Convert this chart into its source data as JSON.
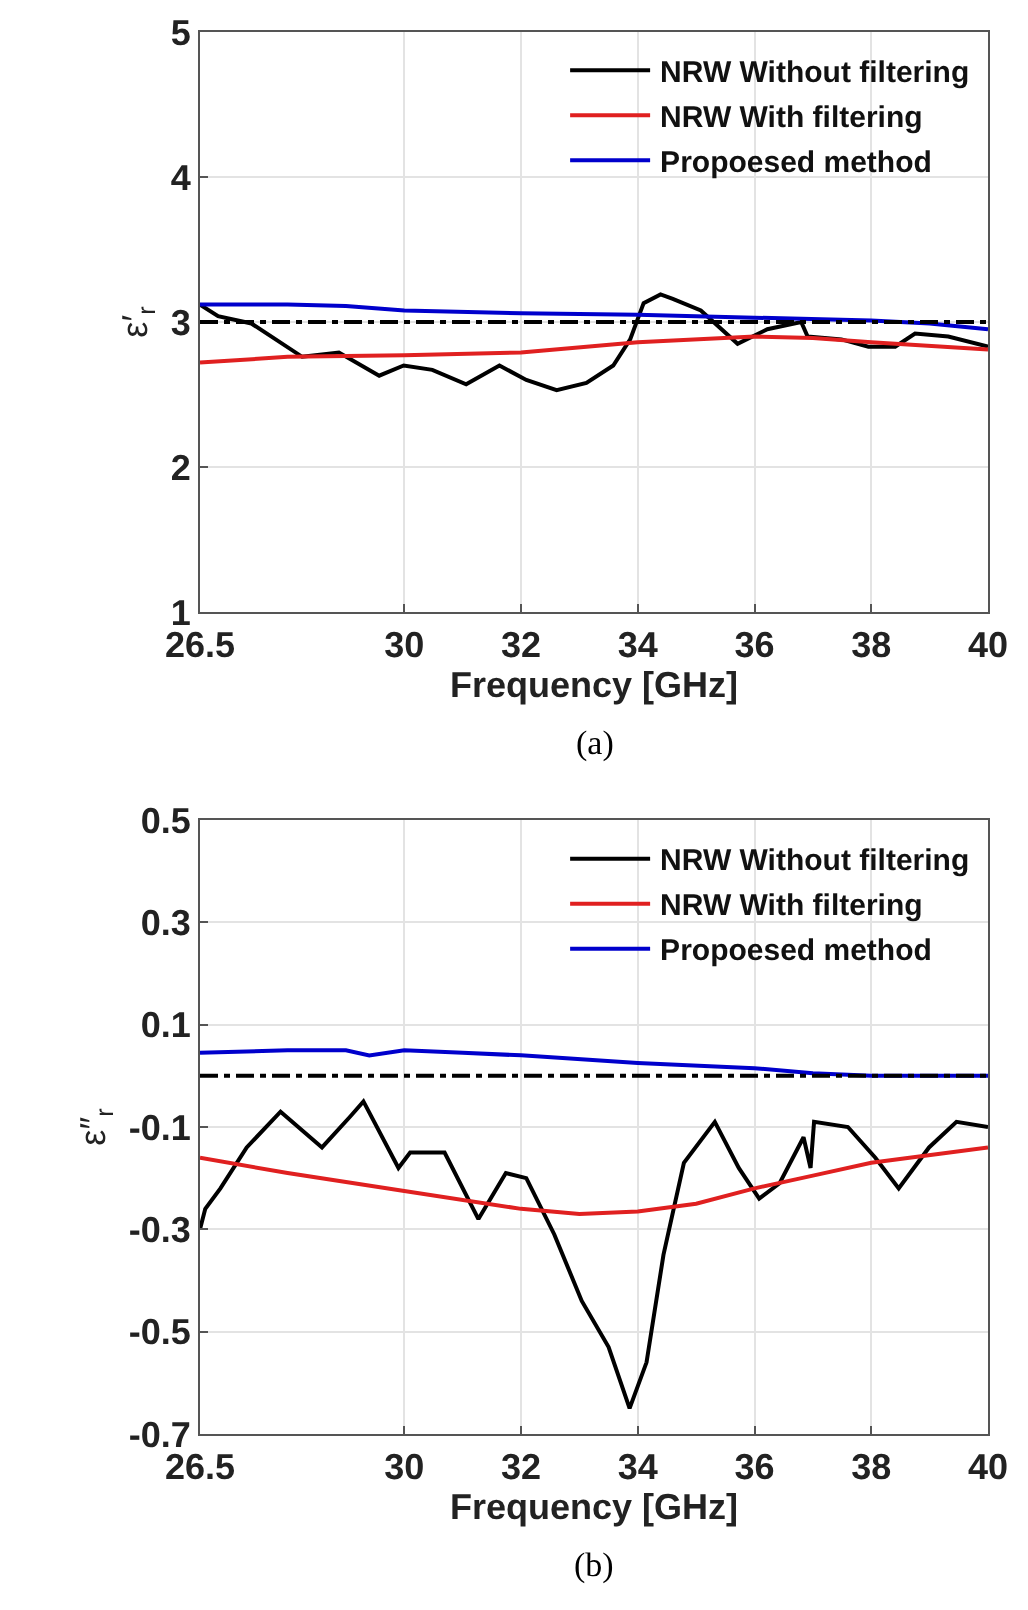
{
  "chart_data": [
    {
      "type": "line",
      "xlabel": "Frequency [GHz]",
      "ylabel": "ε′$_{r}$",
      "annotations": [
        "(a)"
      ],
      "xlim": [
        26.5,
        40
      ],
      "xticks": [
        26.5,
        30,
        32,
        34,
        36,
        38,
        40
      ],
      "ylim": [
        1,
        5
      ],
      "yticks": [
        1,
        2,
        3,
        4,
        5
      ],
      "grid": true,
      "legend": "top right",
      "line_style": "solid",
      "ref_lines": [
        {
          "axis": "y",
          "value": 3,
          "color": "#000000",
          "line_style": "dashed"
        }
      ],
      "series": [
        {
          "name": "NRW Without filtering",
          "color": "#000000",
          "x": [
            26.5,
            26.81,
            27.38,
            28.25,
            28.88,
            29.57,
            29.99,
            30.48,
            31.06,
            31.63,
            32.09,
            32.61,
            33.12,
            33.58,
            33.87,
            34.1,
            34.39,
            34.6,
            35.08,
            35.71,
            36.22,
            36.8,
            36.91,
            37.49,
            37.95,
            38.41,
            38.75,
            39.32,
            40
          ],
          "values": [
            3.12,
            3.04,
            2.99,
            2.76,
            2.79,
            2.63,
            2.7,
            2.67,
            2.57,
            2.7,
            2.6,
            2.53,
            2.58,
            2.7,
            2.88,
            3.13,
            3.19,
            3.16,
            3.08,
            2.85,
            2.95,
            3.0,
            2.9,
            2.88,
            2.83,
            2.83,
            2.92,
            2.9,
            2.83
          ]
        },
        {
          "name": "NRW With filtering",
          "color": "#e02020",
          "x": [
            26.5,
            28,
            30,
            32,
            34,
            36,
            37,
            38,
            40
          ],
          "values": [
            2.72,
            2.76,
            2.77,
            2.79,
            2.86,
            2.9,
            2.89,
            2.86,
            2.81
          ]
        },
        {
          "name": "Propoesed method",
          "color": "#0000cc",
          "x": [
            26.5,
            28,
            29,
            30,
            32,
            34,
            36,
            38,
            39,
            40
          ],
          "values": [
            3.12,
            3.12,
            3.11,
            3.08,
            3.06,
            3.05,
            3.03,
            3.01,
            2.99,
            2.95
          ]
        }
      ]
    },
    {
      "type": "line",
      "xlabel": "Frequency [GHz]",
      "ylabel": "ε″$_{r}$",
      "annotations": [
        "(b)"
      ],
      "xlim": [
        26.5,
        40
      ],
      "xticks": [
        26.5,
        30,
        32,
        34,
        36,
        38,
        40
      ],
      "ylim": [
        -0.7,
        0.5
      ],
      "yticks": [
        -0.7,
        -0.5,
        -0.3,
        -0.1,
        0.1,
        0.3,
        0.5
      ],
      "grid": true,
      "legend": "top right",
      "line_style": "solid",
      "ref_lines": [
        {
          "axis": "y",
          "value": 0,
          "color": "#000000",
          "line_style": "dashed"
        }
      ],
      "series": [
        {
          "name": "NRW Without filtering",
          "color": "#000000",
          "x": [
            26.5,
            26.59,
            26.85,
            27.3,
            27.88,
            28.59,
            29.07,
            29.3,
            29.9,
            30.1,
            30.69,
            31.27,
            31.74,
            32.09,
            32.57,
            33.04,
            33.5,
            33.86,
            34.15,
            34.44,
            34.79,
            35.32,
            35.73,
            36.08,
            36.43,
            36.84,
            36.96,
            37.02,
            37.6,
            38.07,
            38.47,
            38.99,
            39.46,
            40
          ],
          "values": [
            -0.3,
            -0.26,
            -0.22,
            -0.14,
            -0.07,
            -0.14,
            -0.08,
            -0.05,
            -0.18,
            -0.15,
            -0.15,
            -0.28,
            -0.19,
            -0.2,
            -0.31,
            -0.44,
            -0.53,
            -0.65,
            -0.56,
            -0.35,
            -0.17,
            -0.09,
            -0.18,
            -0.24,
            -0.21,
            -0.12,
            -0.18,
            -0.09,
            -0.1,
            -0.16,
            -0.22,
            -0.14,
            -0.09,
            -0.1
          ]
        },
        {
          "name": "NRW With filtering",
          "color": "#e02020",
          "x": [
            26.5,
            28,
            30,
            32,
            33,
            34,
            35,
            36,
            37,
            38,
            40
          ],
          "values": [
            -0.16,
            -0.19,
            -0.225,
            -0.26,
            -0.27,
            -0.265,
            -0.25,
            -0.22,
            -0.195,
            -0.17,
            -0.14
          ]
        },
        {
          "name": "Propoesed method",
          "color": "#0000cc",
          "x": [
            26.5,
            28,
            29,
            29.4,
            30,
            31,
            32,
            34,
            36,
            37,
            38,
            40
          ],
          "values": [
            0.045,
            0.05,
            0.05,
            0.04,
            0.05,
            0.045,
            0.04,
            0.025,
            0.015,
            0.005,
            0,
            0
          ]
        }
      ]
    }
  ]
}
